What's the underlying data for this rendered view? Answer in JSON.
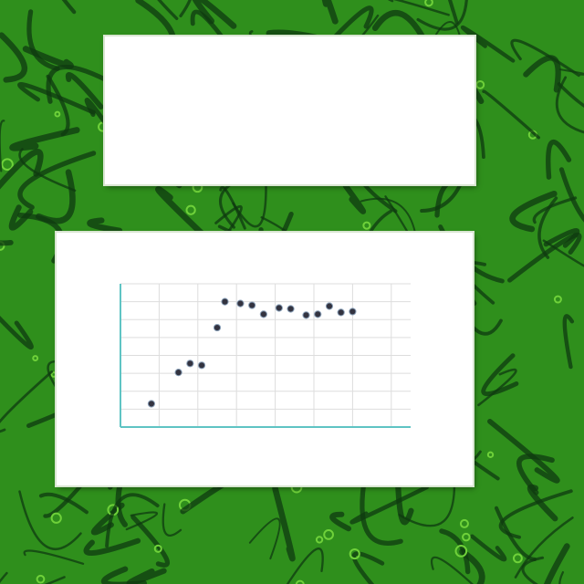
{
  "colors": {
    "background": "#2f8f1c",
    "pattern_dark": "#0f3a10",
    "pattern_light": "#6fd13a",
    "point": "#333340",
    "axis": "#5fc4c4",
    "grid": "#dddddd"
  },
  "text_card": {
    "title": "",
    "paragraphs": []
  },
  "chart_data": {
    "type": "scatter",
    "title": "",
    "xlabel": "",
    "ylabel": "",
    "xlim": [
      1985,
      2060
    ],
    "ylim": [
      0,
      800
    ],
    "x_ticks": [
      1985,
      1995,
      2005,
      2015,
      2025,
      2035,
      2045,
      2055
    ],
    "y_ticks": [
      0,
      100,
      200,
      300,
      400,
      500,
      600,
      700,
      800
    ],
    "x_tick_labels": [
      "",
      "",
      "",
      "",
      "",
      "",
      "",
      ""
    ],
    "y_tick_labels": [
      "",
      "",
      "",
      "",
      "",
      "",
      "",
      "",
      ""
    ],
    "grid": true,
    "legend": "none",
    "x": [
      1993,
      2000,
      2003,
      2006,
      2010,
      2012,
      2016,
      2019,
      2022,
      2026,
      2029,
      2033,
      2036,
      2039,
      2042,
      2045
    ],
    "y": [
      130,
      305,
      355,
      345,
      555,
      700,
      690,
      680,
      630,
      665,
      660,
      625,
      630,
      675,
      640,
      645
    ]
  },
  "chart_caption": ""
}
